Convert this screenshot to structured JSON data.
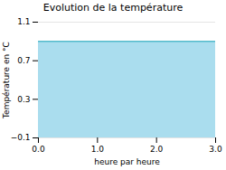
{
  "chart_data": {
    "type": "area",
    "title": "Evolution de la température",
    "xlabel": "heure par heure",
    "ylabel": "Température en °C",
    "x": [
      0,
      3
    ],
    "values": [
      0.9,
      0.9
    ],
    "xlim": [
      0,
      3
    ],
    "ylim": [
      -0.1,
      1.1
    ],
    "xticks": [
      0,
      1,
      2,
      3
    ],
    "yticks": [
      -0.1,
      0.3,
      0.7,
      1.1
    ],
    "grid": true,
    "colors": [
      "#aaddee",
      "#55bbcc"
    ]
  }
}
